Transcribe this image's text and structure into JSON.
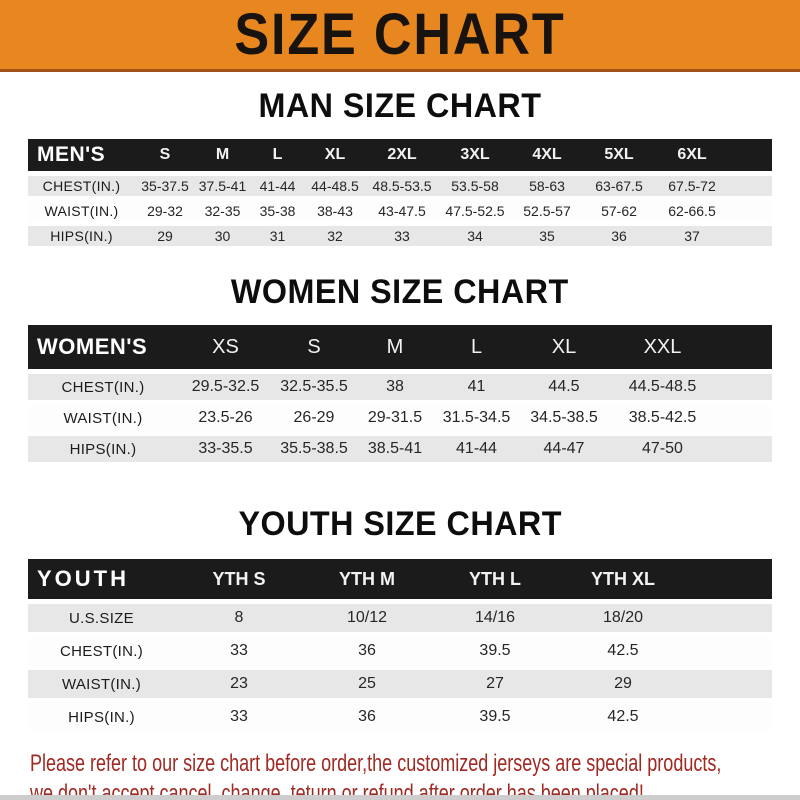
{
  "banner": {
    "title": "SIZE CHART"
  },
  "sections": [
    {
      "id": "men",
      "title": "MAN SIZE CHART",
      "header_label": "MEN'S",
      "columns": [
        "S",
        "M",
        "L",
        "XL",
        "2XL",
        "3XL",
        "4XL",
        "5XL",
        "6XL"
      ],
      "rows": [
        {
          "label": "CHEST(IN.)",
          "values": [
            "35-37.5",
            "37.5-41",
            "41-44",
            "44-48.5",
            "48.5-53.5",
            "53.5-58",
            "58-63",
            "63-67.5",
            "67.5-72"
          ]
        },
        {
          "label": "WAIST(IN.)",
          "values": [
            "29-32",
            "32-35",
            "35-38",
            "38-43",
            "43-47.5",
            "47.5-52.5",
            "52.5-57",
            "57-62",
            "62-66.5"
          ]
        },
        {
          "label": "HIPS(IN.)",
          "values": [
            "29",
            "30",
            "31",
            "32",
            "33",
            "34",
            "35",
            "36",
            "37"
          ]
        }
      ]
    },
    {
      "id": "women",
      "title": "WOMEN SIZE CHART",
      "header_label": "WOMEN'S",
      "columns": [
        "XS",
        "S",
        "M",
        "L",
        "XL",
        "XXL"
      ],
      "rows": [
        {
          "label": "CHEST(IN.)",
          "values": [
            "29.5-32.5",
            "32.5-35.5",
            "38",
            "41",
            "44.5",
            "44.5-48.5"
          ]
        },
        {
          "label": "WAIST(IN.)",
          "values": [
            "23.5-26",
            "26-29",
            "29-31.5",
            "31.5-34.5",
            "34.5-38.5",
            "38.5-42.5"
          ]
        },
        {
          "label": "HIPS(IN.)",
          "values": [
            "33-35.5",
            "35.5-38.5",
            "38.5-41",
            "41-44",
            "44-47",
            "47-50"
          ]
        }
      ]
    },
    {
      "id": "youth",
      "title": "YOUTH SIZE CHART",
      "header_label": "YOUTH",
      "columns": [
        "YTH S",
        "YTH M",
        "YTH L",
        "YTH XL"
      ],
      "rows": [
        {
          "label": "U.S.SIZE",
          "values": [
            "8",
            "10/12",
            "14/16",
            "18/20"
          ]
        },
        {
          "label": "CHEST(IN.)",
          "values": [
            "33",
            "36",
            "39.5",
            "42.5"
          ]
        },
        {
          "label": "WAIST(IN.)",
          "values": [
            "23",
            "25",
            "27",
            "29"
          ]
        },
        {
          "label": "HIPS(IN.)",
          "values": [
            "33",
            "36",
            "39.5",
            "42.5"
          ]
        }
      ]
    }
  ],
  "footer": {
    "line1": "Please refer to our size chart before order,the customized jerseys are special products,",
    "line2": "we don't accept cancel, change, teturn or refund after order has been placed!"
  },
  "colors": {
    "banner_bg": "#e8861f",
    "header_bar": "#1b1b1b",
    "row_gray": "#e7e7e7",
    "note_red": "#a02a23"
  }
}
